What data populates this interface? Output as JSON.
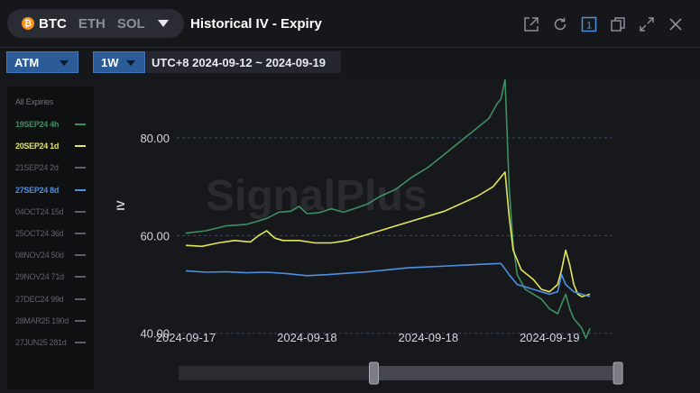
{
  "titlebar": {
    "assets": [
      {
        "label": "BTC",
        "active": true
      },
      {
        "label": "ETH",
        "active": false
      },
      {
        "label": "SOL",
        "active": false
      }
    ],
    "title": "Historical IV - Expiry",
    "icons": [
      "external-link-icon",
      "refresh-icon",
      "one-badge-icon",
      "copy-icon",
      "expand-icon",
      "close-icon"
    ],
    "badge_label": "1"
  },
  "toolbar": {
    "strike_select": "ATM",
    "period_select": "1W",
    "date_range": "UTC+8 2024-09-12 ~ 2024-09-19"
  },
  "sidebar": {
    "title": "All Expiries",
    "items": [
      {
        "label": "19SEP24 4h",
        "color": "#3f8f62",
        "active": true
      },
      {
        "label": "20SEP24 1d",
        "color": "#e3e65a",
        "active": true
      },
      {
        "label": "21SEP24 2d",
        "color": "#5a5e66",
        "active": false
      },
      {
        "label": "27SEP24 8d",
        "color": "#4d8fe0",
        "active": true
      },
      {
        "label": "04OCT24 15d",
        "color": "#5a5e66",
        "active": false
      },
      {
        "label": "25OCT24 36d",
        "color": "#5a5e66",
        "active": false
      },
      {
        "label": "08NOV24 50d",
        "color": "#5a5e66",
        "active": false
      },
      {
        "label": "29NOV24 71d",
        "color": "#5a5e66",
        "active": false
      },
      {
        "label": "27DEC24 99d",
        "color": "#5a5e66",
        "active": false
      },
      {
        "label": "28MAR25 190d",
        "color": "#5a5e66",
        "active": false
      },
      {
        "label": "27JUN25 281d",
        "color": "#5a5e66",
        "active": false
      }
    ]
  },
  "watermark": "SignalPlus",
  "chart_data": {
    "type": "line",
    "ylabel": "IV",
    "ylim": [
      37,
      92
    ],
    "y_ticks": [
      "80.00",
      "60.00",
      "40.00"
    ],
    "y_tick_values": [
      80,
      60,
      40
    ],
    "x_tick_labels": [
      "2024-09-17",
      "2024-09-18",
      "2024-09-18",
      "2024-09-19"
    ],
    "x_domain": [
      0,
      100
    ],
    "x_tick_positions": [
      0,
      30,
      60,
      90
    ],
    "grid": true,
    "series": [
      {
        "name": "19SEP24 4h",
        "color": "#3f8f62",
        "points": [
          [
            0,
            60.5
          ],
          [
            5,
            61
          ],
          [
            10,
            62
          ],
          [
            15,
            62.3
          ],
          [
            18,
            63
          ],
          [
            20,
            63.5
          ],
          [
            23,
            64.8
          ],
          [
            26,
            65
          ],
          [
            28,
            66
          ],
          [
            30,
            64.5
          ],
          [
            33,
            64.7
          ],
          [
            36,
            65.5
          ],
          [
            39,
            64.8
          ],
          [
            42,
            65.6
          ],
          [
            45,
            66.5
          ],
          [
            48,
            68
          ],
          [
            52,
            69.5
          ],
          [
            56,
            72
          ],
          [
            60,
            74
          ],
          [
            63,
            76
          ],
          [
            66,
            78
          ],
          [
            69,
            80
          ],
          [
            72,
            82
          ],
          [
            75,
            84
          ],
          [
            77,
            87
          ],
          [
            78,
            88
          ],
          [
            79,
            92
          ],
          [
            80,
            70
          ],
          [
            81,
            58
          ],
          [
            82,
            52
          ],
          [
            84,
            49
          ],
          [
            86,
            48
          ],
          [
            88,
            47
          ],
          [
            90,
            45
          ],
          [
            92,
            44
          ],
          [
            93,
            46
          ],
          [
            94,
            48
          ],
          [
            95,
            45
          ],
          [
            96,
            43
          ],
          [
            97,
            42
          ],
          [
            98,
            41
          ],
          [
            99,
            39
          ],
          [
            100,
            41
          ]
        ]
      },
      {
        "name": "20SEP24 1d",
        "color": "#e3e65a",
        "points": [
          [
            0,
            58
          ],
          [
            4,
            57.8
          ],
          [
            8,
            58.5
          ],
          [
            12,
            59
          ],
          [
            16,
            58.7
          ],
          [
            18,
            60
          ],
          [
            20,
            61
          ],
          [
            22,
            59.5
          ],
          [
            24,
            59
          ],
          [
            28,
            59
          ],
          [
            32,
            58.5
          ],
          [
            36,
            58.5
          ],
          [
            40,
            59
          ],
          [
            44,
            60
          ],
          [
            48,
            61
          ],
          [
            52,
            62
          ],
          [
            56,
            63
          ],
          [
            60,
            64
          ],
          [
            64,
            65
          ],
          [
            68,
            66.5
          ],
          [
            72,
            68
          ],
          [
            76,
            70
          ],
          [
            78,
            72
          ],
          [
            79,
            73
          ],
          [
            80,
            64
          ],
          [
            81,
            57
          ],
          [
            83,
            53
          ],
          [
            86,
            51
          ],
          [
            88,
            49
          ],
          [
            90,
            48.5
          ],
          [
            92,
            50
          ],
          [
            93,
            53
          ],
          [
            94,
            57
          ],
          [
            95,
            54
          ],
          [
            96,
            50
          ],
          [
            97,
            48
          ],
          [
            98,
            47.5
          ],
          [
            100,
            48
          ]
        ]
      },
      {
        "name": "27SEP24 8d",
        "color": "#4d8fe0",
        "points": [
          [
            0,
            52.8
          ],
          [
            5,
            52.5
          ],
          [
            10,
            52.6
          ],
          [
            15,
            52.4
          ],
          [
            20,
            52.5
          ],
          [
            25,
            52.2
          ],
          [
            30,
            51.8
          ],
          [
            35,
            52
          ],
          [
            40,
            52.3
          ],
          [
            45,
            52.6
          ],
          [
            50,
            53
          ],
          [
            55,
            53.4
          ],
          [
            60,
            53.6
          ],
          [
            65,
            53.8
          ],
          [
            70,
            54
          ],
          [
            75,
            54.2
          ],
          [
            78,
            54.3
          ],
          [
            80,
            52
          ],
          [
            82,
            50
          ],
          [
            84,
            49.5
          ],
          [
            86,
            49
          ],
          [
            88,
            48.5
          ],
          [
            90,
            48
          ],
          [
            92,
            48.5
          ],
          [
            93,
            52
          ],
          [
            94,
            50
          ],
          [
            96,
            48.5
          ],
          [
            98,
            48
          ],
          [
            100,
            47.5
          ]
        ]
      }
    ]
  },
  "scrollbar": {
    "range": [
      0.44,
      0.99
    ]
  }
}
